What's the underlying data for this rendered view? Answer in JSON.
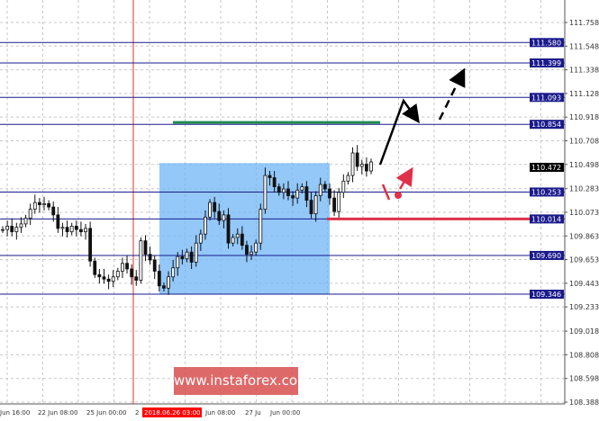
{
  "chart_data": {
    "type": "candlestick",
    "title": "",
    "ylim": [
      108.388,
      111.758
    ],
    "grid": true,
    "y_ticks": [
      "111.758",
      "111.548",
      "111.338",
      "111.128",
      "110.918",
      "110.708",
      "110.498",
      "110.283",
      "110.073",
      "109.863",
      "109.653",
      "109.443",
      "109.233",
      "109.018",
      "108.808",
      "108.598",
      "108.388"
    ],
    "x_ticks": [
      "Jun 16:00",
      "22 Jun 08:00",
      "25 Jun 00:00",
      "2",
      "Jun 08:00",
      "27 Ju",
      "Jun 00:00"
    ],
    "current_time_label": "2018.06.26 03:00",
    "current_price": "110.472",
    "levels": [
      "111.580",
      "111.399",
      "111.093",
      "110.854",
      "110.253",
      "110.014",
      "109.690",
      "109.346"
    ],
    "closes": [
      109.92,
      109.95,
      109.9,
      109.94,
      109.97,
      110.02,
      110.1,
      110.16,
      110.14,
      110.15,
      110.12,
      110.05,
      109.93,
      109.94,
      109.9,
      109.95,
      109.92,
      109.9,
      109.93,
      109.64,
      109.52,
      109.5,
      109.48,
      109.46,
      109.5,
      109.55,
      109.62,
      109.57,
      109.5,
      109.47,
      109.82,
      109.7,
      109.65,
      109.55,
      109.42,
      109.4,
      109.5,
      109.58,
      109.68,
      109.66,
      109.72,
      109.63,
      109.8,
      109.88,
      110.03,
      110.16,
      110.08,
      110.0,
      110.05,
      109.8,
      109.85,
      109.88,
      109.78,
      109.7,
      109.72,
      109.8,
      110.1,
      110.4,
      110.38,
      110.3,
      110.25,
      110.28,
      110.22,
      110.2,
      110.27,
      110.3,
      110.18,
      110.06,
      110.22,
      110.32,
      110.28,
      110.2,
      110.08,
      110.25,
      110.35,
      110.4,
      110.6,
      110.48,
      110.5,
      110.44,
      110.52
    ],
    "zone": {
      "top": 110.51,
      "bottom": 109.346
    },
    "green_level": 110.871,
    "red_level": 110.014,
    "colors": {
      "level": "#1a1a8c",
      "zone": "#6fb5f7",
      "green": "#1f8a4c",
      "red": "#e0304a",
      "vline": "#e03030",
      "candle": "#111111"
    }
  },
  "watermark": "www.instaforex.com"
}
